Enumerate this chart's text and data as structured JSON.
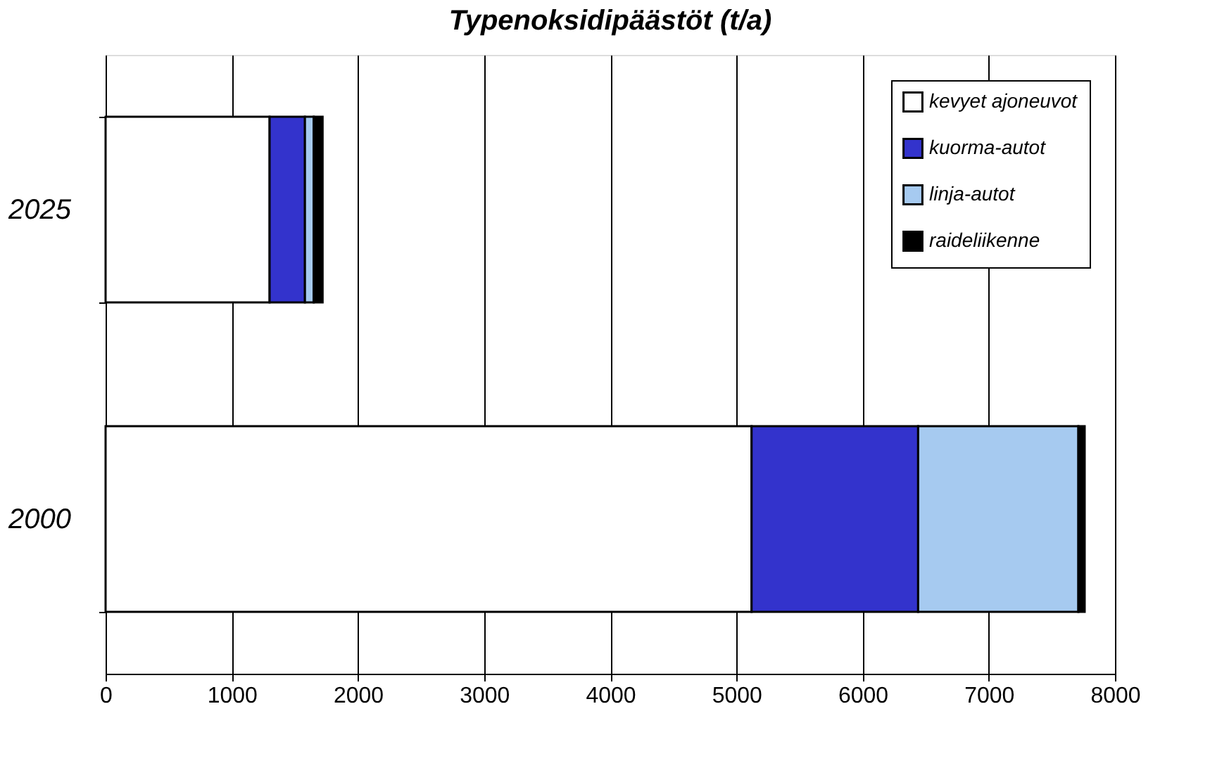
{
  "chart_data": {
    "type": "bar",
    "orientation": "horizontal",
    "stacked": true,
    "title": "Typenoksidipäästöt (t/a)",
    "categories": [
      "2025",
      "2000"
    ],
    "series": [
      {
        "name": "kevyet ajoneuvot",
        "color": "#ffffff",
        "values": [
          1300,
          5120
        ]
      },
      {
        "name": "kuorma-autot",
        "color": "#3333cc",
        "values": [
          280,
          1320
        ]
      },
      {
        "name": "linja-autot",
        "color": "#a6caf0",
        "values": [
          70,
          1270
        ]
      },
      {
        "name": "raideliikenne",
        "color": "#000000",
        "values": [
          70,
          50
        ]
      }
    ],
    "xlim": [
      0,
      8000
    ],
    "xticks": [
      0,
      1000,
      2000,
      3000,
      4000,
      5000,
      6000,
      7000,
      8000
    ],
    "grid": "x",
    "legend": "top right"
  }
}
